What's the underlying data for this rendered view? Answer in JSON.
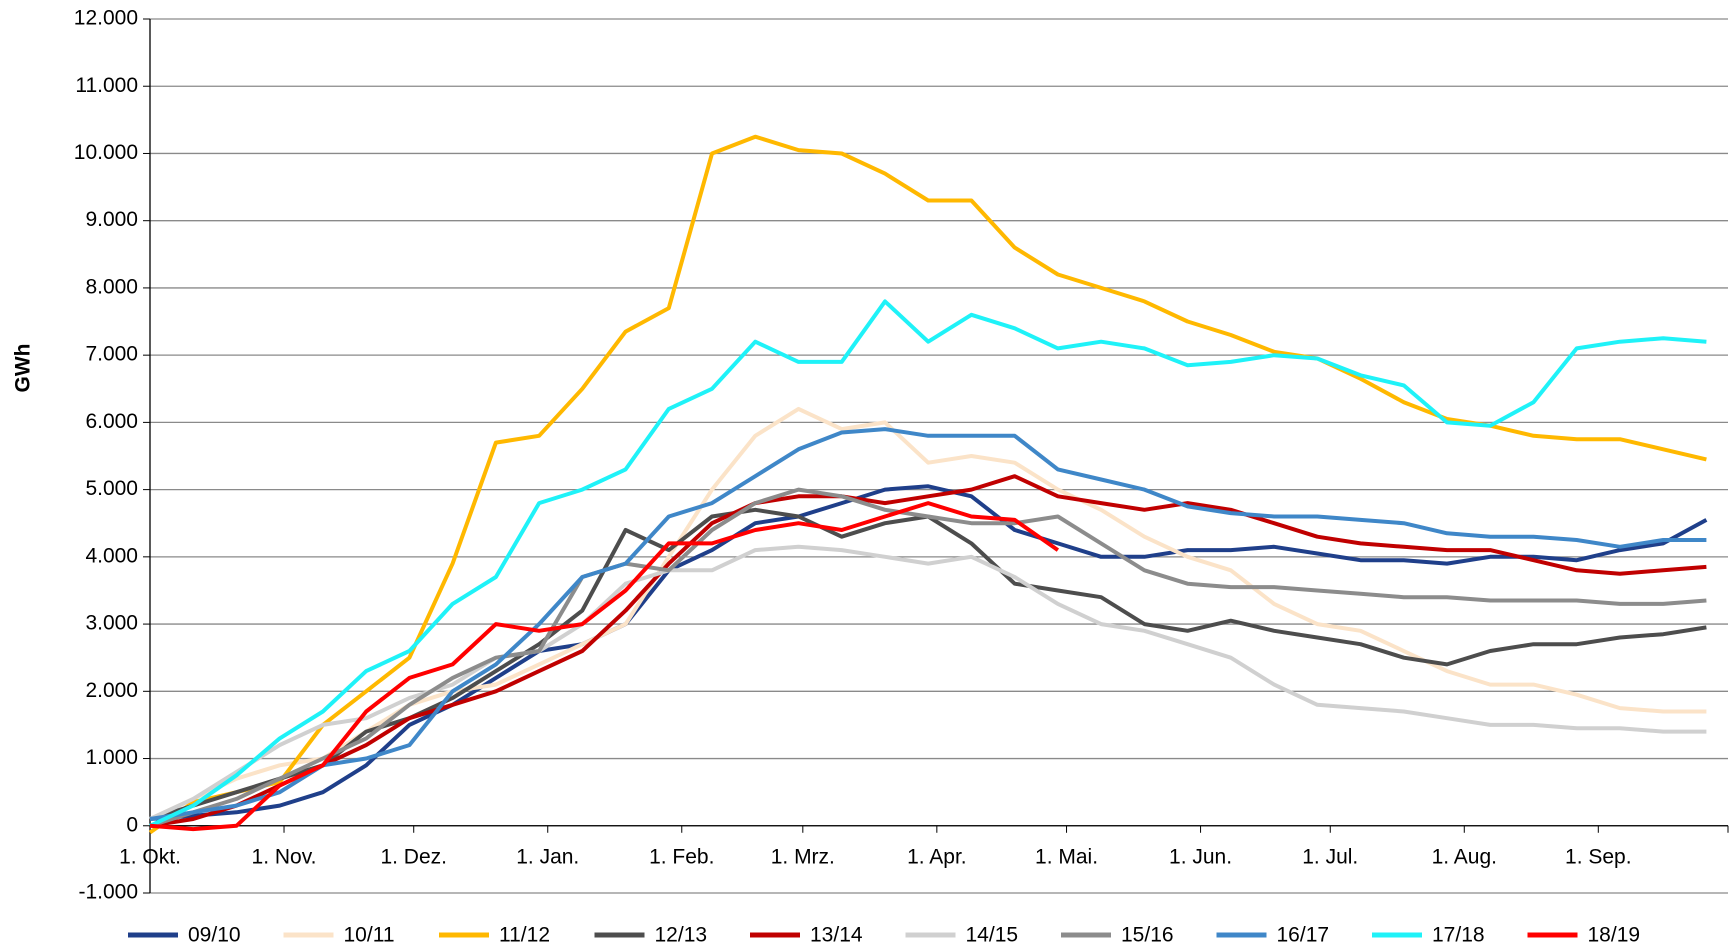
{
  "chart_data": {
    "type": "line",
    "y_label": "GWh",
    "x": [
      0,
      10,
      20,
      30,
      40,
      50,
      60,
      70,
      80,
      90,
      100,
      110,
      120,
      130,
      140,
      150,
      160,
      170,
      180,
      190,
      200,
      210,
      220,
      230,
      240,
      250,
      260,
      270,
      280,
      290,
      300,
      310,
      320,
      330,
      340,
      350,
      360
    ],
    "xlim": [
      0,
      365
    ],
    "xticks": [
      {
        "value": 0,
        "label": "1. Okt."
      },
      {
        "value": 31,
        "label": "1. Nov."
      },
      {
        "value": 61,
        "label": "1. Dez."
      },
      {
        "value": 92,
        "label": "1. Jan."
      },
      {
        "value": 123,
        "label": "1. Feb."
      },
      {
        "value": 151,
        "label": "1. Mrz."
      },
      {
        "value": 182,
        "label": "1. Apr."
      },
      {
        "value": 212,
        "label": "1. Mai."
      },
      {
        "value": 243,
        "label": "1. Jun."
      },
      {
        "value": 273,
        "label": "1. Jul."
      },
      {
        "value": 304,
        "label": "1. Aug."
      },
      {
        "value": 335,
        "label": "1. Sep."
      }
    ],
    "ylim": [
      -1000,
      12000
    ],
    "yticks": [
      {
        "value": -1000,
        "label": "-1.000"
      },
      0,
      {
        "value": 1000,
        "label": "1.000"
      },
      {
        "value": 2000,
        "label": "2.000"
      },
      {
        "value": 3000,
        "label": "3.000"
      },
      {
        "value": 4000,
        "label": "4.000"
      },
      {
        "value": 5000,
        "label": "5.000"
      },
      {
        "value": 6000,
        "label": "6.000"
      },
      {
        "value": 7000,
        "label": "7.000"
      },
      {
        "value": 8000,
        "label": "8.000"
      },
      {
        "value": 9000,
        "label": "9.000"
      },
      {
        "value": 10000,
        "label": "10.000"
      },
      {
        "value": 11000,
        "label": "11.000"
      },
      {
        "value": 12000,
        "label": "12.000"
      }
    ],
    "grid": true,
    "legend": "bottom",
    "series": [
      {
        "name": "09/10",
        "color": "#1f3f8a",
        "values": [
          100,
          150,
          200,
          300,
          500,
          900,
          1500,
          1800,
          2200,
          2600,
          2700,
          3000,
          3800,
          4100,
          4500,
          4600,
          4800,
          5000,
          5050,
          4900,
          4400,
          4200,
          4000,
          4000,
          4100,
          4100,
          4150,
          4050,
          3950,
          3950,
          3900,
          4000,
          4000,
          3950,
          4100,
          4200,
          4550
        ]
      },
      {
        "name": "10/11",
        "color": "#fbe3c8",
        "values": [
          100,
          400,
          700,
          900,
          1000,
          1400,
          1800,
          2000,
          2100,
          2400,
          2700,
          3000,
          4000,
          5000,
          5800,
          6200,
          5900,
          6000,
          5400,
          5500,
          5400,
          5000,
          4700,
          4300,
          4000,
          3800,
          3300,
          3000,
          2900,
          2600,
          2300,
          2100,
          2100,
          1950,
          1750,
          1700,
          1700
        ]
      },
      {
        "name": "11/12",
        "color": "#ffb800",
        "values": [
          -100,
          350,
          500,
          650,
          1500,
          2000,
          2500,
          3900,
          5700,
          5800,
          6500,
          7350,
          7700,
          10000,
          10250,
          10050,
          10000,
          9700,
          9300,
          9300,
          8600,
          8200,
          8000,
          7800,
          7500,
          7300,
          7050,
          6950,
          6650,
          6300,
          6050,
          5950,
          5800,
          5750,
          5750,
          5600,
          5450
        ]
      },
      {
        "name": "12/13",
        "color": "#4d4d4d",
        "values": [
          100,
          300,
          500,
          700,
          900,
          1400,
          1600,
          1900,
          2300,
          2700,
          3200,
          4400,
          4100,
          4600,
          4700,
          4600,
          4300,
          4500,
          4600,
          4200,
          3600,
          3500,
          3400,
          3000,
          2900,
          3050,
          2900,
          2800,
          2700,
          2500,
          2400,
          2600,
          2700,
          2700,
          2800,
          2850,
          2950
        ]
      },
      {
        "name": "13/14",
        "color": "#c00000",
        "values": [
          0,
          100,
          300,
          600,
          900,
          1200,
          1600,
          1800,
          2000,
          2300,
          2600,
          3200,
          3900,
          4500,
          4800,
          4900,
          4900,
          4800,
          4900,
          5000,
          5200,
          4900,
          4800,
          4700,
          4800,
          4700,
          4500,
          4300,
          4200,
          4150,
          4100,
          4100,
          3950,
          3800,
          3750,
          3800,
          3850
        ]
      },
      {
        "name": "14/15",
        "color": "#d0d0d0",
        "values": [
          100,
          400,
          800,
          1200,
          1500,
          1600,
          1900,
          2100,
          2500,
          2600,
          3000,
          3600,
          3800,
          3800,
          4100,
          4150,
          4100,
          4000,
          3900,
          4000,
          3700,
          3300,
          3000,
          2900,
          2700,
          2500,
          2100,
          1800,
          1750,
          1700,
          1600,
          1500,
          1500,
          1450,
          1450,
          1400,
          1400
        ]
      },
      {
        "name": "15/16",
        "color": "#8c8c8c",
        "values": [
          0,
          200,
          400,
          700,
          1000,
          1300,
          1800,
          2200,
          2500,
          2600,
          3700,
          3900,
          3800,
          4400,
          4800,
          5000,
          4900,
          4700,
          4600,
          4500,
          4500,
          4600,
          4200,
          3800,
          3600,
          3550,
          3550,
          3500,
          3450,
          3400,
          3400,
          3350,
          3350,
          3350,
          3300,
          3300,
          3350
        ]
      },
      {
        "name": "16/17",
        "color": "#3f87c8",
        "values": [
          100,
          200,
          300,
          500,
          900,
          1000,
          1200,
          2000,
          2400,
          3000,
          3700,
          3900,
          4600,
          4800,
          5200,
          5600,
          5850,
          5900,
          5800,
          5800,
          5800,
          5300,
          5150,
          5000,
          4750,
          4650,
          4600,
          4600,
          4550,
          4500,
          4350,
          4300,
          4300,
          4250,
          4150,
          4250,
          4250
        ]
      },
      {
        "name": "17/18",
        "color": "#1ff2f8",
        "values": [
          0,
          300,
          750,
          1300,
          1700,
          2300,
          2600,
          3300,
          3700,
          4800,
          5000,
          5300,
          6200,
          6500,
          7200,
          6900,
          6900,
          7800,
          7200,
          7600,
          7400,
          7100,
          7200,
          7100,
          6850,
          6900,
          7000,
          6950,
          6700,
          6550,
          6000,
          5950,
          6300,
          7100,
          7200,
          7250,
          7200
        ]
      },
      {
        "name": "18/19",
        "color": "#ff0000",
        "values": [
          0,
          -50,
          0,
          600,
          900,
          1700,
          2200,
          2400,
          3000,
          2900,
          3000,
          3500,
          4200,
          4200,
          4400,
          4500,
          4400,
          4600,
          4800,
          4600,
          4550,
          4100,
          null,
          null,
          null,
          null,
          null,
          null,
          null,
          null,
          null,
          null,
          null,
          null,
          null,
          null,
          null
        ]
      }
    ]
  }
}
